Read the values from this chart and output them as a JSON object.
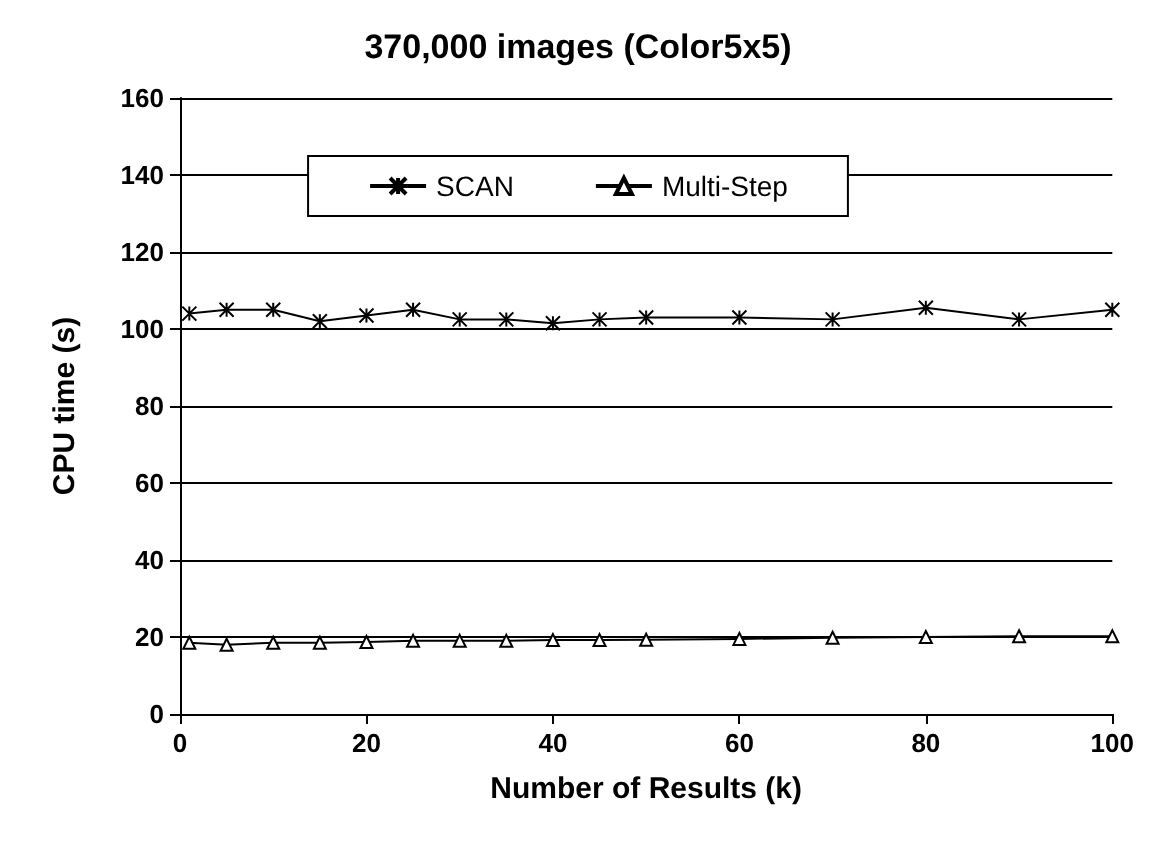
{
  "chart_data": {
    "type": "line",
    "title": "370,000 images (Color5x5)",
    "xlabel": "Number of Results (k)",
    "ylabel": "CPU time (s)",
    "x": [
      1,
      5,
      10,
      15,
      20,
      25,
      30,
      35,
      40,
      45,
      50,
      60,
      70,
      80,
      90,
      100
    ],
    "series": [
      {
        "name": "SCAN",
        "color": "#000000",
        "marker": "cross",
        "values": [
          104,
          105,
          105,
          102,
          103.5,
          105,
          102.5,
          102.5,
          101.5,
          102.5,
          103,
          103,
          102.5,
          105.5,
          102.5,
          105
        ]
      },
      {
        "name": "Multi-Step",
        "color": "#000000",
        "marker": "triangle",
        "values": [
          18.5,
          18,
          18.5,
          18.5,
          18.7,
          19,
          19,
          19,
          19.2,
          19.2,
          19.3,
          19.5,
          19.8,
          20,
          20.2,
          20.2
        ]
      }
    ],
    "xlim": [
      0,
      100
    ],
    "xticks": [
      0,
      20,
      40,
      60,
      80,
      100
    ],
    "ylim": [
      0,
      160
    ],
    "yticks": [
      0,
      20,
      40,
      60,
      80,
      100,
      120,
      140,
      160
    ],
    "grid": "y",
    "legend": "top",
    "line_style": "solid"
  }
}
